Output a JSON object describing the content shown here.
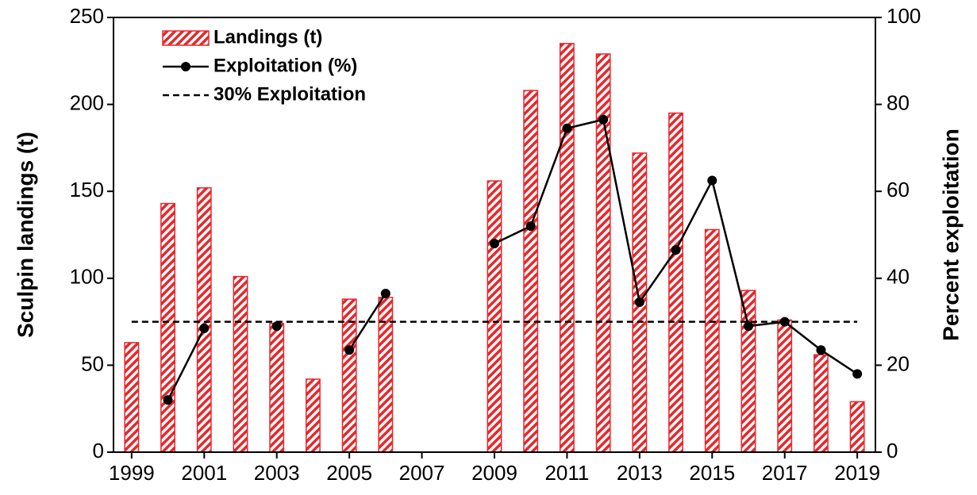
{
  "chart_data": {
    "type": "bar_line",
    "x": [
      1999,
      2000,
      2001,
      2002,
      2003,
      2004,
      2005,
      2006,
      2007,
      2008,
      2009,
      2010,
      2011,
      2012,
      2013,
      2014,
      2015,
      2016,
      2017,
      2018,
      2019
    ],
    "xlim": [
      1998.5,
      2019.5
    ],
    "xticks": [
      1999,
      2001,
      2003,
      2005,
      2007,
      2009,
      2011,
      2013,
      2015,
      2017,
      2019
    ],
    "ylabel": "Sculpin landings (t)",
    "ylim": [
      0,
      250
    ],
    "yticks": [
      0,
      50,
      100,
      150,
      200,
      250
    ],
    "y2label": "Percent exploitation",
    "y2lim": [
      0,
      100
    ],
    "y2ticks": [
      0,
      20,
      40,
      60,
      80,
      100
    ],
    "series": [
      {
        "name": "Landings (t)",
        "kind": "bar",
        "color": "#e8262a",
        "values": [
          63,
          143,
          152,
          101,
          74,
          42,
          88,
          89,
          null,
          null,
          156,
          208,
          235,
          229,
          172,
          195,
          128,
          93,
          76,
          56,
          29
        ]
      },
      {
        "name": "Exploitation (%)",
        "kind": "line",
        "axis": "y2",
        "color": "#000000",
        "values": [
          null,
          12,
          28.5,
          null,
          29,
          null,
          23.5,
          36.5,
          null,
          null,
          48,
          52,
          74.5,
          76.5,
          34.5,
          46.5,
          62.5,
          29,
          30,
          23.5,
          18
        ]
      },
      {
        "name": "30% Exploitation",
        "kind": "dashed",
        "axis": "y2",
        "color": "#000000",
        "x": [
          1999,
          2019
        ],
        "values": [
          30,
          30
        ]
      }
    ]
  }
}
